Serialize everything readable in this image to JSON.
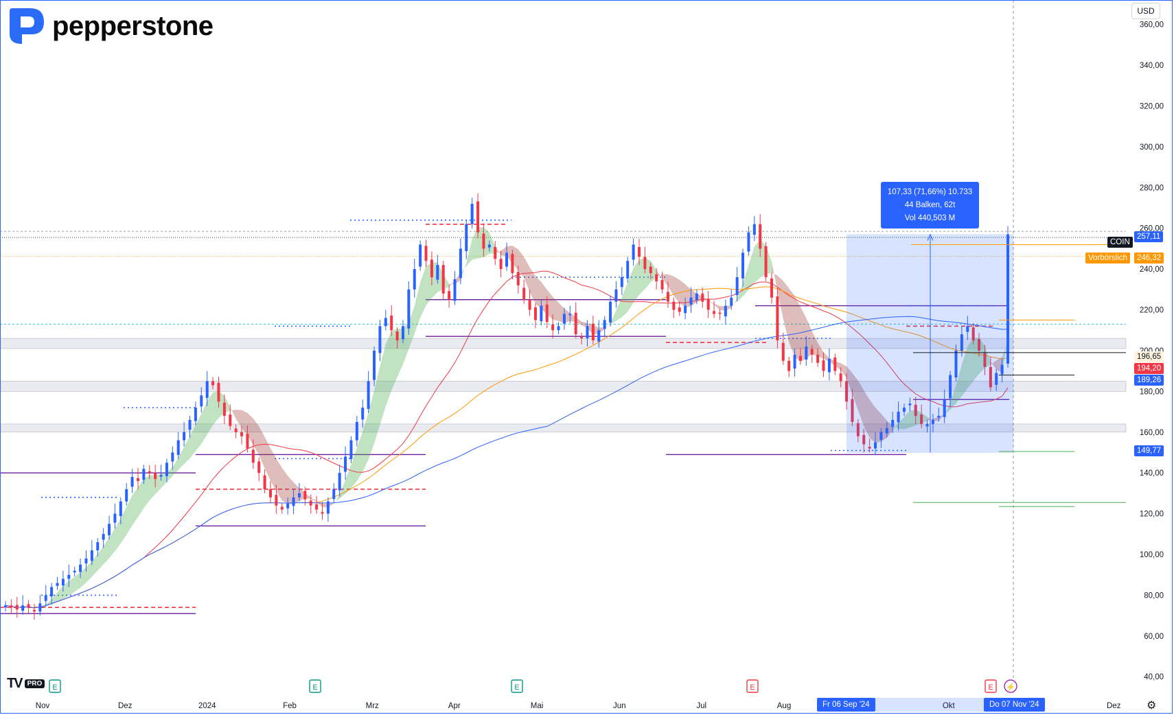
{
  "brand": {
    "name": "pepperstone"
  },
  "currency": "USD",
  "watermark": {
    "tv": "TV",
    "pro": "PRO"
  },
  "colors": {
    "up": "#2962ff",
    "down": "#f23645",
    "brand_blue": "#2a6cf6",
    "sma_red": "#f23645",
    "sma_orange": "#ff9800",
    "sma_blue": "#2962ff",
    "cloud_green": "#4caf50",
    "cloud_red": "#a1423d",
    "level_purple": "#6a1b9a",
    "range_fill": "#2962ff"
  },
  "measure_tooltip": {
    "line1": "107,33 (71,66%) 10.733",
    "line2": "44 Balken, 62t",
    "line3": "Vol 440,503 M"
  },
  "price_labels": {
    "last": "257,11",
    "symbol": "COIN",
    "premarket_tag": "Vorbörslich",
    "premarket": "246,32",
    "l1": "196,65",
    "l2": "194,20",
    "l3": "189,26",
    "low": "149,77"
  },
  "date_labels": {
    "start": "Fr 06 Sep '24",
    "end": "Do 07 Nov '24"
  },
  "chart_data": {
    "type": "candlestick",
    "symbol": "COIN",
    "currency": "USD",
    "ylim": [
      32,
      372
    ],
    "y_ticks": [
      "360,00",
      "340,00",
      "320,00",
      "300,00",
      "280,00",
      "260,00",
      "240,00",
      "220,00",
      "200,00",
      "180,00",
      "160,00",
      "140,00",
      "120,00",
      "100,00",
      "80,00",
      "60,00",
      "40,00"
    ],
    "x_ticks": [
      {
        "label": "Nov",
        "pos": 0.0
      },
      {
        "label": "Dez",
        "pos": 0.167
      },
      {
        "label": "2024",
        "pos": 0.333
      },
      {
        "label": "Feb",
        "pos": 0.5
      },
      {
        "label": "Mrz",
        "pos": 0.667
      },
      {
        "label": "Apr",
        "pos": 0.833
      },
      {
        "label": "Mai",
        "pos": 1.0
      },
      {
        "label": "Jun",
        "pos": 1.167
      },
      {
        "label": "Jul",
        "pos": 1.333
      },
      {
        "label": "Aug",
        "pos": 1.5
      },
      {
        "label": "Okt",
        "pos": 1.833
      },
      {
        "label": "Dez",
        "pos": 2.167
      }
    ],
    "closes": [
      75,
      74,
      73,
      75,
      74,
      72,
      76,
      80,
      84,
      86,
      88,
      90,
      92,
      95,
      98,
      102,
      106,
      110,
      115,
      120,
      126,
      132,
      138,
      136,
      142,
      140,
      137,
      139,
      145,
      150,
      156,
      160,
      166,
      172,
      178,
      185,
      183,
      175,
      168,
      163,
      160,
      158,
      152,
      145,
      140,
      132,
      128,
      124,
      122,
      125,
      128,
      130,
      127,
      124,
      122,
      120,
      126,
      132,
      140,
      148,
      156,
      165,
      172,
      185,
      200,
      212,
      216,
      210,
      205,
      212,
      230,
      240,
      252,
      244,
      236,
      242,
      228,
      225,
      235,
      250,
      262,
      272,
      258,
      250,
      252,
      245,
      240,
      248,
      238,
      232,
      225,
      220,
      215,
      222,
      214,
      210,
      212,
      218,
      218,
      208,
      206,
      212,
      205,
      210,
      215,
      224,
      230,
      236,
      244,
      252,
      246,
      240,
      238,
      234,
      230,
      224,
      220,
      219,
      222,
      226,
      228,
      224,
      220,
      218,
      218,
      222,
      226,
      236,
      248,
      258,
      262,
      250,
      236,
      226,
      205,
      195,
      190,
      198,
      195,
      202,
      198,
      194,
      190,
      196,
      190,
      185,
      175,
      165,
      158,
      154,
      152,
      155,
      160,
      162,
      166,
      170,
      172,
      174,
      168,
      164,
      164,
      166,
      168,
      176,
      188,
      200,
      208,
      212,
      205,
      200,
      192,
      182,
      189,
      193,
      257
    ],
    "events": [
      "E",
      "E",
      "E",
      "E",
      "E",
      "⚡"
    ],
    "levels_note": "support/resistance dotted and solid lines as drawn"
  }
}
